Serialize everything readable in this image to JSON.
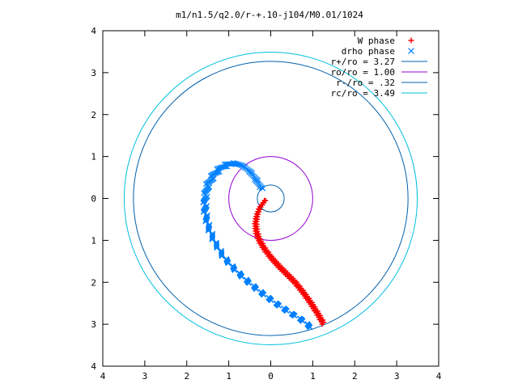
{
  "chart_data": {
    "type": "scatter",
    "title": "m1/n1.5/q2.0/r-+.10-j104/M0.01/1024",
    "xlabel": "",
    "ylabel": "",
    "xlim": [
      -4,
      4
    ],
    "ylim": [
      -4,
      4
    ],
    "x_tick_labels": [
      "4",
      "3",
      "2",
      "1",
      "0",
      "1",
      "2",
      "3",
      "4"
    ],
    "y_tick_labels": [
      "4",
      "3",
      "2",
      "1",
      "0",
      "1",
      "2",
      "3",
      "4"
    ],
    "x_ticks": [
      -4,
      -3,
      -2,
      -1,
      0,
      1,
      2,
      3,
      4
    ],
    "y_ticks": [
      4,
      3,
      2,
      1,
      0,
      -1,
      -2,
      -3,
      -4
    ],
    "grid": false,
    "legend_position": "top-right",
    "series": [
      {
        "name": "W phase",
        "kind": "points",
        "marker": "+",
        "color": "#ff0000",
        "points": [
          [
            -0.12,
            -0.03
          ],
          [
            -0.25,
            -0.2
          ],
          [
            -0.33,
            -0.4
          ],
          [
            -0.36,
            -0.6
          ],
          [
            -0.34,
            -0.8
          ],
          [
            -0.27,
            -1.0
          ],
          [
            -0.15,
            -1.2
          ],
          [
            0.0,
            -1.4
          ],
          [
            0.18,
            -1.6
          ],
          [
            0.38,
            -1.8
          ],
          [
            0.58,
            -2.0
          ],
          [
            0.78,
            -2.25
          ],
          [
            0.96,
            -2.5
          ],
          [
            1.12,
            -2.75
          ],
          [
            1.25,
            -2.98
          ]
        ]
      },
      {
        "name": "drho phase",
        "kind": "points",
        "marker": "x",
        "color": "#0080ff",
        "points": [
          [
            -0.22,
            0.24
          ],
          [
            -0.35,
            0.45
          ],
          [
            -0.5,
            0.65
          ],
          [
            -0.7,
            0.8
          ],
          [
            -0.92,
            0.84
          ],
          [
            -1.15,
            0.76
          ],
          [
            -1.35,
            0.58
          ],
          [
            -1.5,
            0.32
          ],
          [
            -1.57,
            0.0
          ],
          [
            -1.56,
            -0.35
          ],
          [
            -1.48,
            -0.7
          ],
          [
            -1.33,
            -1.05
          ],
          [
            -1.12,
            -1.4
          ],
          [
            -0.85,
            -1.7
          ],
          [
            -0.55,
            -1.98
          ],
          [
            -0.22,
            -2.25
          ],
          [
            0.12,
            -2.5
          ],
          [
            0.45,
            -2.72
          ],
          [
            0.75,
            -2.9
          ],
          [
            0.98,
            -3.1
          ]
        ]
      },
      {
        "name": "r+/ro = 3.27",
        "kind": "circle",
        "radius": 3.27,
        "color": "#0060ad"
      },
      {
        "name": "ro/ro = 1.00",
        "kind": "circle",
        "radius": 1.0,
        "color": "#9400d3"
      },
      {
        "name": "r-/ro = .32",
        "kind": "circle",
        "radius": 0.32,
        "color": "#0060ad"
      },
      {
        "name": "rc/ro = 3.49",
        "kind": "circle",
        "radius": 3.49,
        "color": "#00c0e0"
      }
    ]
  }
}
